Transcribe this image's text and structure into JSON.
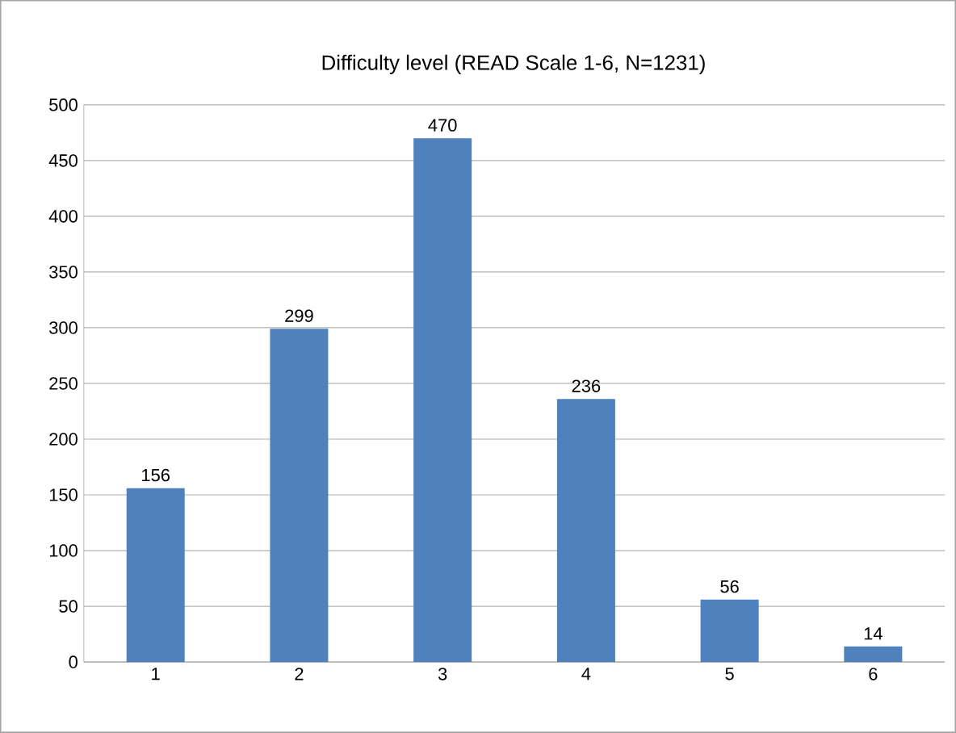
{
  "chart_data": {
    "type": "bar",
    "title": "Difficulty level  (READ Scale 1-6, N=1231)",
    "categories": [
      "1",
      "2",
      "3",
      "4",
      "5",
      "6"
    ],
    "values": [
      156,
      299,
      470,
      236,
      56,
      14
    ],
    "color": "#4f81bd",
    "ylim": [
      0,
      500
    ],
    "yticks": [
      0,
      50,
      100,
      150,
      200,
      250,
      300,
      350,
      400,
      450,
      500
    ],
    "grid": "y",
    "data_labels": true
  }
}
